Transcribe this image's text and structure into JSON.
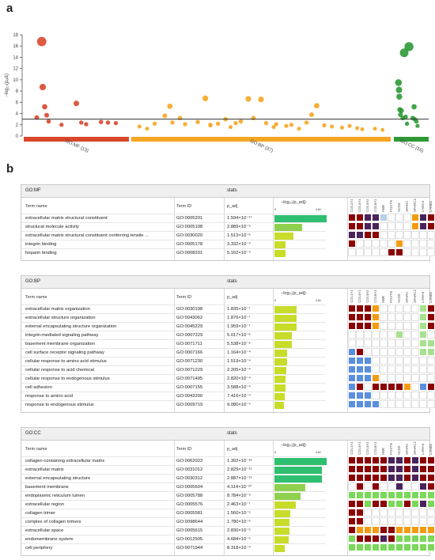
{
  "panel_a_label": "a",
  "panel_b_label": "b",
  "chart_data": {
    "type": "scatter",
    "ylabel": "−log₁₀(pₐdⱼ)",
    "ylim": [
      0,
      18
    ],
    "yticks": [
      "0",
      "2",
      "4",
      "6",
      "8",
      "10",
      "12",
      "14",
      "16",
      "18"
    ],
    "threshold": 3,
    "colors": {
      "GO:MF": "#d9472b",
      "GO:BP": "#f5a623",
      "GO:CC": "#2e9a35"
    },
    "groups": [
      {
        "name": "GO:MF",
        "label": "GO:MF (13)",
        "points": [
          [
            0.1,
            3.3
          ],
          [
            0.15,
            16.8
          ],
          [
            0.16,
            8.7
          ],
          [
            0.18,
            5.2
          ],
          [
            0.2,
            3.7
          ],
          [
            0.22,
            2.6
          ],
          [
            0.35,
            2.0
          ],
          [
            0.5,
            5.8
          ],
          [
            0.55,
            2.4
          ],
          [
            0.6,
            2.1
          ],
          [
            0.75,
            2.5
          ],
          [
            0.82,
            2.4
          ],
          [
            0.9,
            2.3
          ]
        ]
      },
      {
        "name": "GO:BP",
        "label": "GO:BP (37)",
        "points": [
          [
            0.02,
            1.7
          ],
          [
            0.05,
            1.3
          ],
          [
            0.12,
            3.6
          ],
          [
            0.14,
            5.3
          ],
          [
            0.15,
            2.4
          ],
          [
            0.18,
            3.2
          ],
          [
            0.2,
            2.1
          ],
          [
            0.28,
            6.7
          ],
          [
            0.3,
            2.0
          ],
          [
            0.33,
            2.2
          ],
          [
            0.36,
            3.0
          ],
          [
            0.38,
            1.6
          ],
          [
            0.4,
            2.3
          ],
          [
            0.45,
            6.6
          ],
          [
            0.47,
            3.2
          ],
          [
            0.5,
            6.5
          ],
          [
            0.52,
            2.3
          ],
          [
            0.56,
            2.1
          ],
          [
            0.6,
            1.8
          ],
          [
            0.65,
            1.3
          ],
          [
            0.7,
            3.8
          ],
          [
            0.72,
            5.4
          ],
          [
            0.75,
            1.9
          ],
          [
            0.78,
            1.7
          ],
          [
            0.82,
            1.5
          ],
          [
            0.85,
            1.8
          ],
          [
            0.9,
            1.2
          ],
          [
            0.95,
            1.3
          ],
          [
            0.42,
            2.6
          ],
          [
            0.25,
            2.5
          ],
          [
            0.62,
            2.0
          ],
          [
            0.68,
            2.4
          ],
          [
            0.88,
            1.4
          ],
          [
            0.98,
            1.1
          ],
          [
            0.08,
            2.2
          ],
          [
            0.3,
            1.9
          ],
          [
            0.55,
            1.6
          ]
        ]
      },
      {
        "name": "GO:CC",
        "label": "GO:CC (16)",
        "points": [
          [
            0.05,
            9.5
          ],
          [
            0.07,
            8.2
          ],
          [
            0.08,
            7.0
          ],
          [
            0.1,
            4.7
          ],
          [
            0.12,
            3.8
          ],
          [
            0.15,
            4.5
          ],
          [
            0.2,
            3.2
          ],
          [
            0.25,
            14.8
          ],
          [
            0.3,
            3.4
          ],
          [
            0.35,
            2.2
          ],
          [
            0.42,
            15.9
          ],
          [
            0.55,
            3.2
          ],
          [
            0.6,
            5.2
          ],
          [
            0.62,
            3.0
          ],
          [
            0.68,
            2.6
          ],
          [
            0.72,
            1.8
          ]
        ]
      }
    ]
  },
  "gene_columns": [
    "COL1A1",
    "COL4A1",
    "COL4A2",
    "COL6A1",
    "HBB",
    "POSTN",
    "SCD5",
    "SPARC",
    "SPARC2",
    "LAMA4",
    "LAMB2",
    "LAMC1",
    "FGF1"
  ],
  "palette": [
    "#ffffff",
    "#8b0000",
    "#4a235a",
    "#b5d1e8",
    "#f39c12",
    "#7ad85a",
    "#5a8fe0",
    "#a8e08f"
  ],
  "tables": [
    {
      "source": "GO:MF",
      "stats_label": "stats",
      "col_name": "Term name",
      "col_id": "Term ID",
      "col_p": "p_adj",
      "col_bar": "−log₁₀(p_adj)",
      "bar_min": "0",
      "bar_max": "≤16",
      "bar_color_hi": "#2fbf71",
      "rows": [
        {
          "name": "extracellular matrix structural constituent",
          "id": "GO:0005201",
          "p": "1.594×10⁻¹⁷",
          "v": 16.8,
          "cells": [
            1,
            1,
            2,
            2,
            3,
            0,
            0,
            0,
            4,
            2,
            1,
            0,
            0
          ]
        },
        {
          "name": "structural molecule activity",
          "id": "GO:0005198",
          "p": "2.889×10⁻⁹",
          "v": 8.5,
          "cells": [
            1,
            1,
            2,
            2,
            0,
            0,
            0,
            0,
            4,
            2,
            1,
            0,
            0
          ]
        },
        {
          "name": "extracellular matrix structural constituent conferring tensile ...",
          "id": "GO:0030020",
          "p": "1.513×10⁻⁶",
          "v": 5.8,
          "cells": [
            2,
            2,
            1,
            1,
            0,
            0,
            0,
            0,
            0,
            0,
            0,
            0,
            0
          ]
        },
        {
          "name": "integrin binding",
          "id": "GO:0005178",
          "p": "3.332×10⁻⁴",
          "v": 3.5,
          "cells": [
            1,
            0,
            0,
            0,
            0,
            0,
            4,
            0,
            0,
            0,
            0,
            0,
            0
          ]
        },
        {
          "name": "heparin binding",
          "id": "GO:0008201",
          "p": "5.162×10⁻⁴",
          "v": 3.3,
          "cells": [
            0,
            0,
            0,
            0,
            0,
            1,
            1,
            0,
            0,
            0,
            0,
            0,
            5
          ]
        }
      ]
    },
    {
      "source": "GO:BP",
      "stats_label": "stats",
      "col_name": "Term name",
      "col_id": "Term ID",
      "col_p": "p_adj",
      "col_bar": "−log₁₀(p_adj)",
      "bar_min": "0",
      "bar_max": "≤16",
      "bar_color_hi": "#2fbf71",
      "rows": [
        {
          "name": "extracellular matrix organization",
          "id": "GO:0030198",
          "p": "1.835×10⁻⁷",
          "v": 6.7,
          "cells": [
            1,
            1,
            1,
            4,
            0,
            0,
            0,
            0,
            0,
            7,
            1,
            0,
            0
          ]
        },
        {
          "name": "extracellular structure organization",
          "id": "GO:0043062",
          "p": "1.876×10⁻⁷",
          "v": 6.7,
          "cells": [
            1,
            1,
            1,
            4,
            0,
            0,
            0,
            0,
            0,
            7,
            1,
            0,
            0
          ]
        },
        {
          "name": "external encapsulating structure organization",
          "id": "GO:0045229",
          "p": "1.959×10⁻⁷",
          "v": 6.7,
          "cells": [
            1,
            1,
            1,
            4,
            0,
            0,
            0,
            0,
            0,
            7,
            1,
            0,
            0
          ]
        },
        {
          "name": "integrin-mediated signaling pathway",
          "id": "GO:0007229",
          "p": "5.017×10⁻⁶",
          "v": 5.3,
          "cells": [
            0,
            0,
            0,
            0,
            0,
            0,
            7,
            0,
            0,
            7,
            0,
            0,
            0
          ]
        },
        {
          "name": "basement membrane organization",
          "id": "GO:0071711",
          "p": "5.538×10⁻⁶",
          "v": 5.3,
          "cells": [
            0,
            0,
            0,
            0,
            0,
            0,
            0,
            0,
            0,
            7,
            7,
            0,
            0
          ]
        },
        {
          "name": "cell surface receptor signaling pathway",
          "id": "GO:0007166",
          "p": "1.164×10⁻⁴",
          "v": 3.9,
          "cells": [
            6,
            1,
            0,
            0,
            0,
            0,
            0,
            0,
            0,
            7,
            7,
            0,
            0
          ]
        },
        {
          "name": "cellular response to amino acid stimulus",
          "id": "GO:0071230",
          "p": "1.519×10⁻⁴",
          "v": 3.8,
          "cells": [
            6,
            6,
            6,
            0,
            0,
            0,
            0,
            0,
            0,
            0,
            0,
            0,
            0
          ]
        },
        {
          "name": "cellular response to acid chemical",
          "id": "GO:0071229",
          "p": "2.205×10⁻⁴",
          "v": 3.7,
          "cells": [
            6,
            6,
            6,
            0,
            0,
            0,
            0,
            0,
            0,
            0,
            0,
            0,
            0
          ]
        },
        {
          "name": "cellular response to endogenous stimulus",
          "id": "GO:0071495",
          "p": "2.820×10⁻⁴",
          "v": 3.5,
          "cells": [
            6,
            6,
            6,
            4,
            0,
            0,
            0,
            0,
            0,
            0,
            0,
            0,
            0
          ]
        },
        {
          "name": "cell adhesion",
          "id": "GO:0007155",
          "p": "3.588×10⁻⁴",
          "v": 3.4,
          "cells": [
            6,
            1,
            0,
            1,
            1,
            1,
            1,
            4,
            0,
            6,
            1,
            0,
            0
          ]
        },
        {
          "name": "response to amino acid",
          "id": "GO:0043200",
          "p": "7.416×10⁻⁴",
          "v": 3.1,
          "cells": [
            6,
            6,
            6,
            0,
            0,
            0,
            0,
            0,
            0,
            0,
            0,
            0,
            0
          ]
        },
        {
          "name": "response to endogenous stimulus",
          "id": "GO:0009719",
          "p": "9.080×10⁻⁴",
          "v": 3.0,
          "cells": [
            6,
            6,
            6,
            6,
            0,
            0,
            0,
            0,
            0,
            0,
            0,
            0,
            4
          ]
        }
      ]
    },
    {
      "source": "GO:CC",
      "stats_label": "stats",
      "col_name": "Term name",
      "col_id": "Term ID",
      "col_p": "p_adj",
      "col_bar": "−log₁₀(p_adj)",
      "bar_min": "0",
      "bar_max": "≤16",
      "bar_color_hi": "#2fbf71",
      "rows": [
        {
          "name": "collagen-containing extracellular matrix",
          "id": "GO:0062023",
          "p": "1.302×10⁻¹⁶",
          "v": 15.9,
          "cells": [
            1,
            1,
            1,
            1,
            1,
            2,
            2,
            1,
            2,
            1,
            1,
            0,
            0
          ]
        },
        {
          "name": "extracellular matrix",
          "id": "GO:0031012",
          "p": "2.829×10⁻¹⁵",
          "v": 14.5,
          "cells": [
            1,
            1,
            1,
            1,
            1,
            2,
            2,
            1,
            2,
            1,
            1,
            0,
            0
          ]
        },
        {
          "name": "external encapsulating structure",
          "id": "GO:0030312",
          "p": "2.887×10⁻¹⁵",
          "v": 14.5,
          "cells": [
            1,
            1,
            1,
            1,
            1,
            2,
            2,
            1,
            2,
            1,
            1,
            0,
            0
          ]
        },
        {
          "name": "basement membrane",
          "id": "GO:0005604",
          "p": "4.114×10⁻¹⁰",
          "v": 9.4,
          "cells": [
            0,
            1,
            0,
            1,
            0,
            0,
            2,
            0,
            0,
            2,
            1,
            0,
            0
          ]
        },
        {
          "name": "endoplasmic reticulum lumen",
          "id": "GO:0005788",
          "p": "8.784×10⁻⁹",
          "v": 8.1,
          "cells": [
            5,
            5,
            5,
            5,
            5,
            5,
            5,
            5,
            5,
            5,
            5,
            5,
            5
          ]
        },
        {
          "name": "extracellular region",
          "id": "GO:0005576",
          "p": "2.463×10⁻⁷",
          "v": 6.6,
          "cells": [
            1,
            1,
            5,
            1,
            1,
            5,
            5,
            1,
            5,
            2,
            5,
            2,
            2
          ]
        },
        {
          "name": "collagen trimer",
          "id": "GO:0005581",
          "p": "1.560×10⁻⁵",
          "v": 4.8,
          "cells": [
            1,
            1,
            0,
            0,
            0,
            0,
            0,
            0,
            0,
            0,
            0,
            0,
            0
          ]
        },
        {
          "name": "complex of collagen trimers",
          "id": "GO:0098644",
          "p": "1.780×10⁻⁵",
          "v": 4.7,
          "cells": [
            1,
            1,
            0,
            0,
            0,
            0,
            0,
            0,
            0,
            0,
            0,
            0,
            0
          ]
        },
        {
          "name": "extracellular space",
          "id": "GO:0005615",
          "p": "2.830×10⁻⁵",
          "v": 4.5,
          "cells": [
            1,
            4,
            4,
            4,
            1,
            1,
            4,
            4,
            4,
            4,
            4,
            4,
            4
          ]
        },
        {
          "name": "endomembrane system",
          "id": "GO:0012505",
          "p": "4.684×10⁻⁵",
          "v": 4.3,
          "cells": [
            5,
            1,
            1,
            1,
            2,
            1,
            5,
            5,
            5,
            5,
            5,
            5,
            5
          ]
        },
        {
          "name": "cell periphery",
          "id": "GO:0071944",
          "p": "8.318×10⁻⁴",
          "v": 3.1,
          "cells": [
            5,
            5,
            5,
            5,
            5,
            5,
            5,
            5,
            5,
            5,
            5,
            5,
            5
          ]
        }
      ]
    }
  ]
}
